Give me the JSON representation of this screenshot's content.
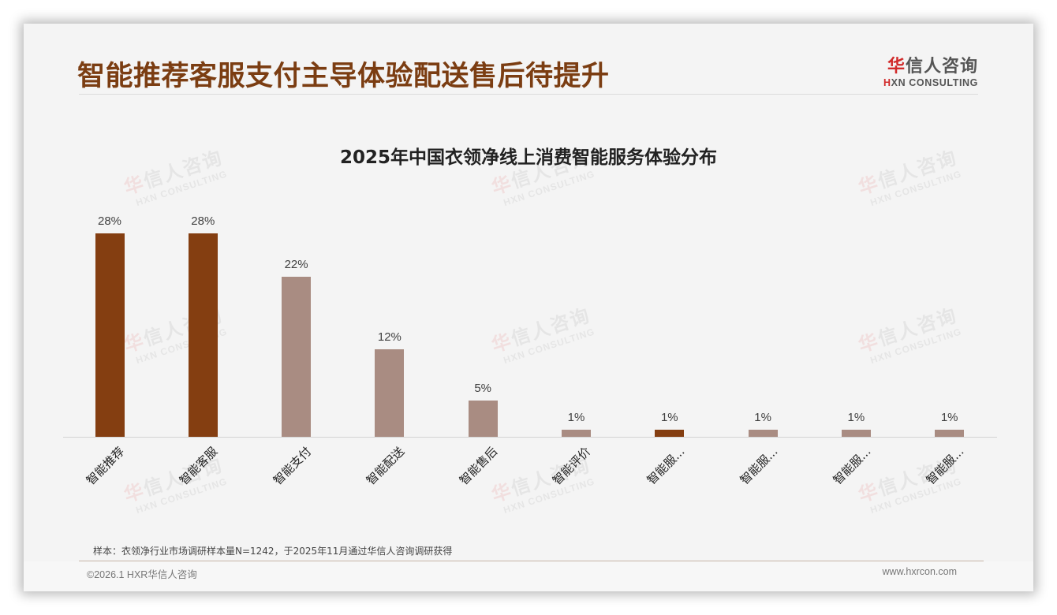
{
  "header": {
    "title": "智能推荐客服支付主导体验配送售后待提升",
    "logo_cn_first": "华",
    "logo_cn_rest": "信人咨询",
    "logo_en_first": "H",
    "logo_en_rest": "XN CONSULTING"
  },
  "watermark": {
    "cn_first": "华",
    "cn_rest": "信人咨询",
    "en": "HXN CONSULTING"
  },
  "colors": {
    "highlight": "#843e11",
    "normal": "#a98c82",
    "title": "#7b3d12",
    "background": "#f4f4f4"
  },
  "chart_data": {
    "type": "bar",
    "title": "2025年中国衣领净线上消费智能服务体验分布",
    "xlabel": "",
    "ylabel": "",
    "ylim": [
      0,
      30
    ],
    "grid": false,
    "legend": "none",
    "categories": [
      "智能推荐",
      "智能客服",
      "智能支付",
      "智能配送",
      "智能售后",
      "智能评价",
      "智能服...",
      "智能服...",
      "智能服...",
      "智能服..."
    ],
    "values": [
      28,
      28,
      22,
      12,
      5,
      1,
      1,
      1,
      1,
      1
    ],
    "value_labels": [
      "28%",
      "28%",
      "22%",
      "12%",
      "5%",
      "1%",
      "1%",
      "1%",
      "1%",
      "1%"
    ],
    "highlighted": [
      true,
      true,
      false,
      false,
      false,
      false,
      true,
      false,
      false,
      false
    ]
  },
  "footer": {
    "note": "样本：衣领净行业市场调研样本量N=1242，于2025年11月通过华信人咨询调研获得",
    "copyright": "©2026.1 HXR华信人咨询",
    "website": "www.hxrcon.com"
  }
}
